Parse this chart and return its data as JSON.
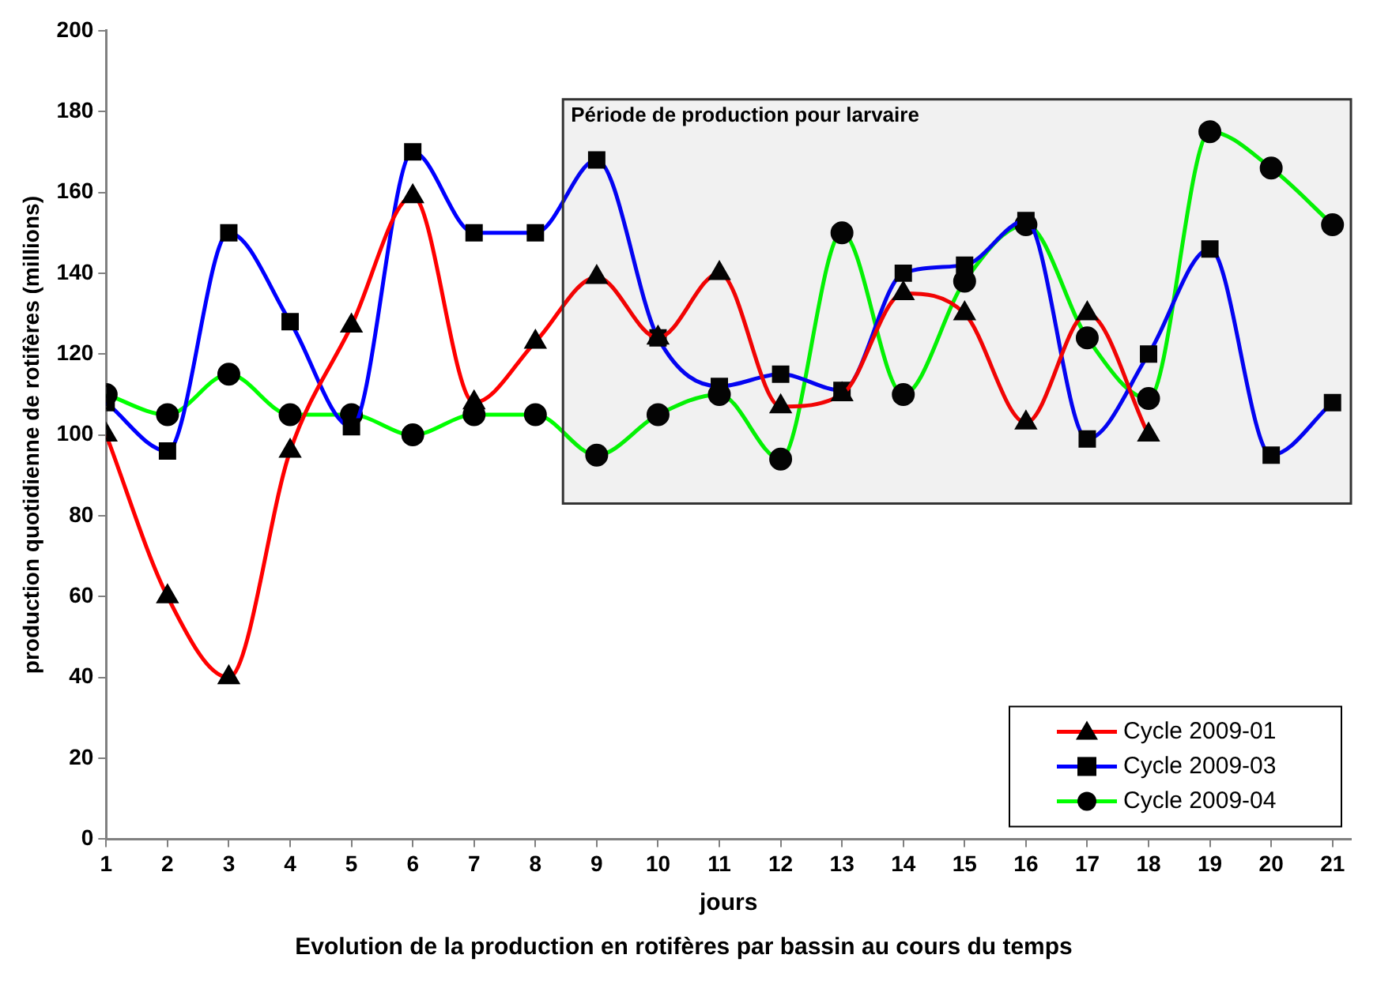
{
  "chart_data": {
    "type": "line",
    "title": "Evolution de la production en rotifères par bassin au cours du temps",
    "xlabel": "jours",
    "ylabel": "production quotidienne de rotifères (millions)",
    "x": [
      1,
      2,
      3,
      4,
      5,
      6,
      7,
      8,
      9,
      10,
      11,
      12,
      13,
      14,
      15,
      16,
      17,
      18,
      19,
      20,
      21
    ],
    "xlim": [
      1,
      21.3
    ],
    "xticks": [
      1,
      2,
      3,
      4,
      5,
      6,
      7,
      8,
      9,
      10,
      11,
      12,
      13,
      14,
      15,
      16,
      17,
      18,
      19,
      20,
      21
    ],
    "ylim": [
      0,
      200
    ],
    "yticks": [
      0,
      20,
      40,
      60,
      80,
      100,
      120,
      140,
      160,
      180,
      200
    ],
    "series": [
      {
        "name": "Cycle 2009-01",
        "color": "#ff0000",
        "marker": "triangle",
        "values": [
          100,
          60,
          40,
          96,
          127,
          159,
          108,
          123,
          139,
          124,
          140,
          107,
          110,
          135,
          130,
          103,
          130,
          100,
          null,
          null,
          null
        ]
      },
      {
        "name": "Cycle 2009-03",
        "color": "#0000ff",
        "marker": "square",
        "values": [
          108,
          96,
          150,
          128,
          102,
          170,
          150,
          150,
          168,
          124,
          112,
          115,
          111,
          140,
          142,
          153,
          99,
          120,
          146,
          95,
          108
        ]
      },
      {
        "name": "Cycle 2009-04",
        "color": "#00ff00",
        "marker": "circle",
        "values": [
          110,
          105,
          115,
          105,
          105,
          100,
          105,
          105,
          95,
          105,
          110,
          94,
          150,
          110,
          138,
          152,
          124,
          109,
          175,
          166,
          152
        ]
      }
    ],
    "bands": [
      {
        "axis": "x",
        "from": 8.45,
        "to": 21.3,
        "label": "Période de production pour larvaire"
      }
    ],
    "grid": false,
    "legend": "bottom right",
    "line_style": "solid"
  }
}
